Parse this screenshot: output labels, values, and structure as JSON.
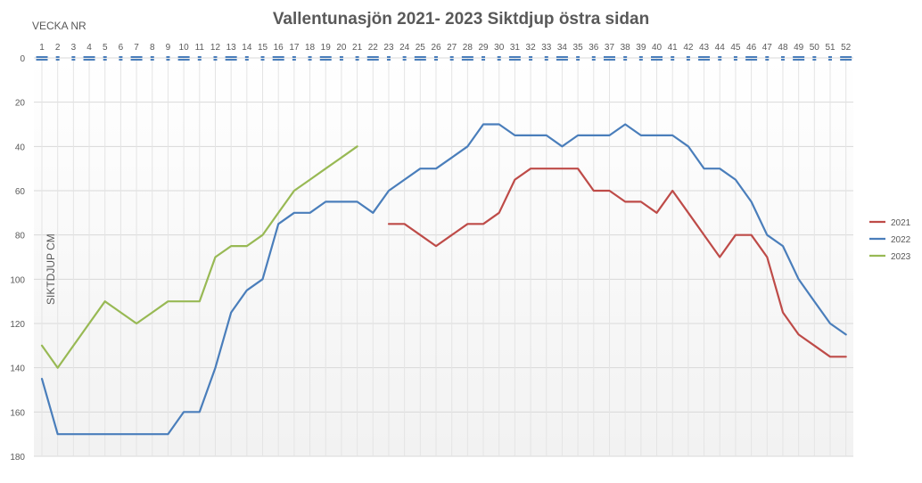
{
  "chart_data": {
    "type": "line",
    "title": "Vallentunasjön 2021- 2023 Siktdjup östra sidan",
    "xlabel": "VECKA NR",
    "ylabel": "SIKTDJUP CM",
    "x": [
      1,
      2,
      3,
      4,
      5,
      6,
      7,
      8,
      9,
      10,
      11,
      12,
      13,
      14,
      15,
      16,
      17,
      18,
      19,
      20,
      21,
      22,
      23,
      24,
      25,
      26,
      27,
      28,
      29,
      30,
      31,
      32,
      33,
      34,
      35,
      36,
      37,
      38,
      39,
      40,
      41,
      42,
      43,
      44,
      45,
      46,
      47,
      48,
      49,
      50,
      51,
      52
    ],
    "x_tick_labels": [
      "1",
      "2",
      "3",
      "4",
      "5",
      "6",
      "7",
      "8",
      "9",
      "10",
      "11",
      "12",
      "13",
      "14",
      "15",
      "16",
      "17",
      "18",
      "19",
      "20",
      "21",
      "22",
      "23",
      "24",
      "25",
      "26",
      "27",
      "28",
      "29",
      "30",
      "31",
      "32",
      "33",
      "34",
      "35",
      "36",
      "37",
      "38",
      "39",
      "40",
      "41",
      "42",
      "43",
      "44",
      "45",
      "46",
      "47",
      "48",
      "49",
      "50",
      "51",
      "52"
    ],
    "ylim": [
      0,
      180
    ],
    "y_reversed": true,
    "y_ticks": [
      0,
      20,
      40,
      60,
      80,
      100,
      120,
      140,
      160,
      180
    ],
    "y_tick_labels": [
      "0",
      "20",
      "40",
      "60",
      "80",
      "100",
      "120",
      "140",
      "160",
      "180"
    ],
    "x_axis_position": "top",
    "grid": true,
    "legend_position": "right",
    "series": [
      {
        "name": "2021",
        "color": "#be4b48",
        "values": [
          null,
          null,
          null,
          null,
          null,
          null,
          null,
          null,
          null,
          null,
          null,
          null,
          null,
          null,
          null,
          null,
          null,
          null,
          null,
          null,
          null,
          null,
          75,
          75,
          80,
          85,
          80,
          75,
          75,
          70,
          55,
          50,
          50,
          50,
          50,
          60,
          60,
          65,
          65,
          70,
          60,
          70,
          80,
          90,
          80,
          80,
          90,
          115,
          125,
          130,
          135,
          135
        ]
      },
      {
        "name": "2022",
        "color": "#4a7ebb",
        "values": [
          145,
          170,
          170,
          170,
          170,
          170,
          170,
          170,
          170,
          160,
          160,
          140,
          115,
          105,
          100,
          75,
          70,
          70,
          65,
          65,
          65,
          70,
          60,
          55,
          50,
          50,
          45,
          40,
          30,
          30,
          35,
          35,
          35,
          40,
          35,
          35,
          35,
          30,
          35,
          35,
          35,
          40,
          50,
          50,
          55,
          65,
          80,
          85,
          100,
          110,
          120,
          125
        ]
      },
      {
        "name": "2023",
        "color": "#98b954",
        "values": [
          130,
          140,
          130,
          120,
          110,
          115,
          120,
          115,
          110,
          110,
          110,
          90,
          85,
          85,
          80,
          70,
          60,
          55,
          50,
          45,
          40,
          null,
          null,
          null,
          null,
          null,
          null,
          null,
          null,
          null,
          null,
          null,
          null,
          null,
          null,
          null,
          null,
          null,
          null,
          null,
          null,
          null,
          null,
          null,
          null,
          null,
          null,
          null,
          null,
          null,
          null,
          null
        ]
      }
    ]
  }
}
